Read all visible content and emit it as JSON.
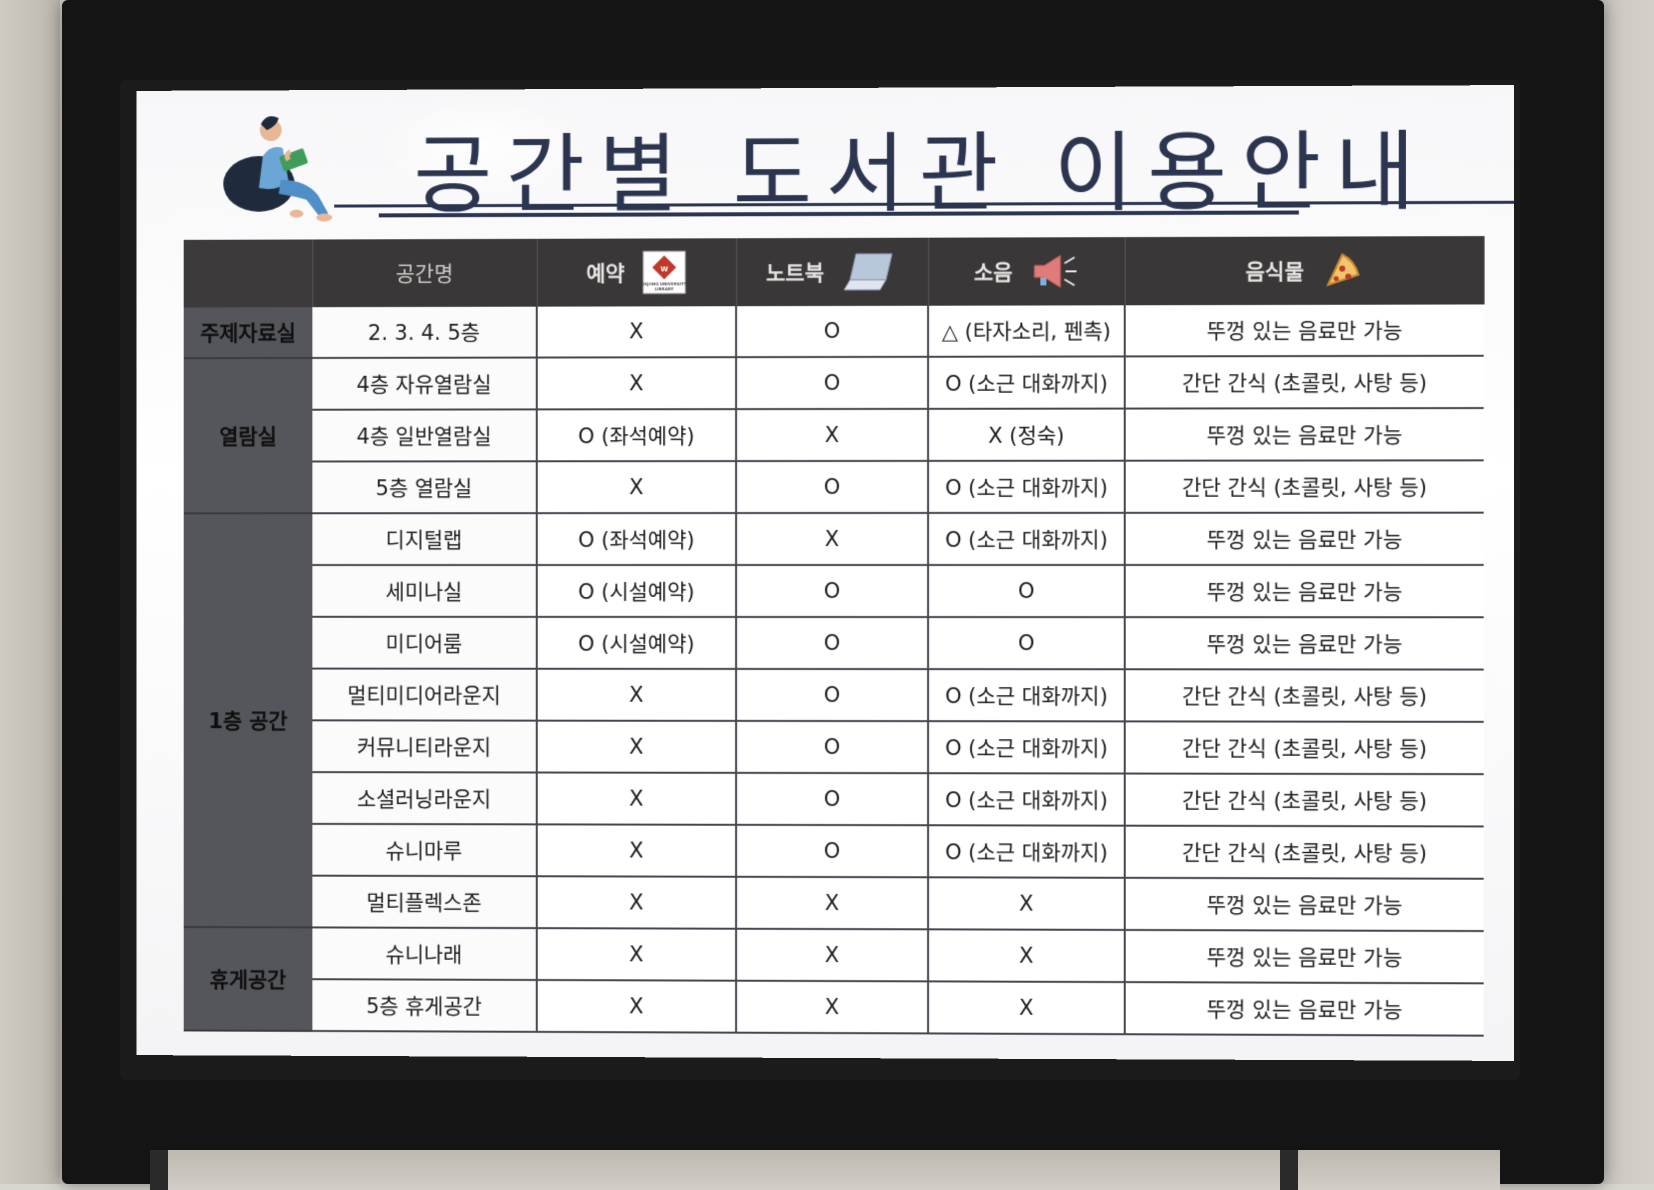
{
  "title": "공간별 도서관 이용안내",
  "header": {
    "category": "",
    "name": "공간명",
    "reservation": "예약",
    "laptop": "노트북",
    "noise": "소음",
    "food": "음식물"
  },
  "logo_text": "SEJONG UNIVERSITY LIBRARY",
  "groups": [
    {
      "category": "주제자료실",
      "rows": [
        {
          "name": "2. 3. 4. 5층",
          "reservation": "X",
          "laptop": "O",
          "noise": "△ (타자소리, 펜촉)",
          "food": "뚜껑 있는 음료만 가능"
        }
      ]
    },
    {
      "category": "열람실",
      "rows": [
        {
          "name": "4층 자유열람실",
          "reservation": "X",
          "laptop": "O",
          "noise": "O (소근 대화까지)",
          "food": "간단 간식 (초콜릿, 사탕 등)"
        },
        {
          "name": "4층 일반열람실",
          "reservation": "O (좌석예약)",
          "laptop": "X",
          "noise": "X (정숙)",
          "food": "뚜껑 있는 음료만 가능"
        },
        {
          "name": "5층 열람실",
          "reservation": "X",
          "laptop": "O",
          "noise": "O (소근 대화까지)",
          "food": "간단 간식 (초콜릿, 사탕 등)"
        }
      ]
    },
    {
      "category": "1층 공간",
      "rows": [
        {
          "name": "디지털랩",
          "reservation": "O (좌석예약)",
          "laptop": "X",
          "noise": "O (소근 대화까지)",
          "food": "뚜껑 있는 음료만 가능"
        },
        {
          "name": "세미나실",
          "reservation": "O (시설예약)",
          "laptop": "O",
          "noise": "O",
          "food": "뚜껑 있는 음료만 가능"
        },
        {
          "name": "미디어룸",
          "reservation": "O (시설예약)",
          "laptop": "O",
          "noise": "O",
          "food": "뚜껑 있는 음료만 가능"
        },
        {
          "name": "멀티미디어라운지",
          "reservation": "X",
          "laptop": "O",
          "noise": "O (소근 대화까지)",
          "food": "간단 간식 (초콜릿, 사탕 등)"
        },
        {
          "name": "커뮤니티라운지",
          "reservation": "X",
          "laptop": "O",
          "noise": "O (소근 대화까지)",
          "food": "간단 간식 (초콜릿, 사탕 등)"
        },
        {
          "name": "소셜러닝라운지",
          "reservation": "X",
          "laptop": "O",
          "noise": "O (소근 대화까지)",
          "food": "간단 간식 (초콜릿, 사탕 등)"
        },
        {
          "name": "슈니마루",
          "reservation": "X",
          "laptop": "O",
          "noise": "O (소근 대화까지)",
          "food": "간단 간식 (초콜릿, 사탕 등)"
        },
        {
          "name": "멀티플렉스존",
          "reservation": "X",
          "laptop": "X",
          "noise": "X",
          "food": "뚜껑 있는 음료만 가능"
        }
      ]
    },
    {
      "category": "휴게공간",
      "rows": [
        {
          "name": "슈니나래",
          "reservation": "X",
          "laptop": "X",
          "noise": "X",
          "food": "뚜껑 있는 음료만 가능"
        },
        {
          "name": "5층 휴게공간",
          "reservation": "X",
          "laptop": "X",
          "noise": "X",
          "food": "뚜껑 있는 음료만 가능"
        }
      ]
    }
  ],
  "colors": {
    "title": "#2b3550",
    "header_bg": "#3a3738",
    "category_bg": "#55565b",
    "logo_red": "#c0392b"
  },
  "icons": {
    "reader": "person-reading-icon",
    "reservation": "library-logo-icon",
    "laptop": "laptop-icon",
    "noise": "megaphone-icon",
    "food": "pizza-icon"
  }
}
